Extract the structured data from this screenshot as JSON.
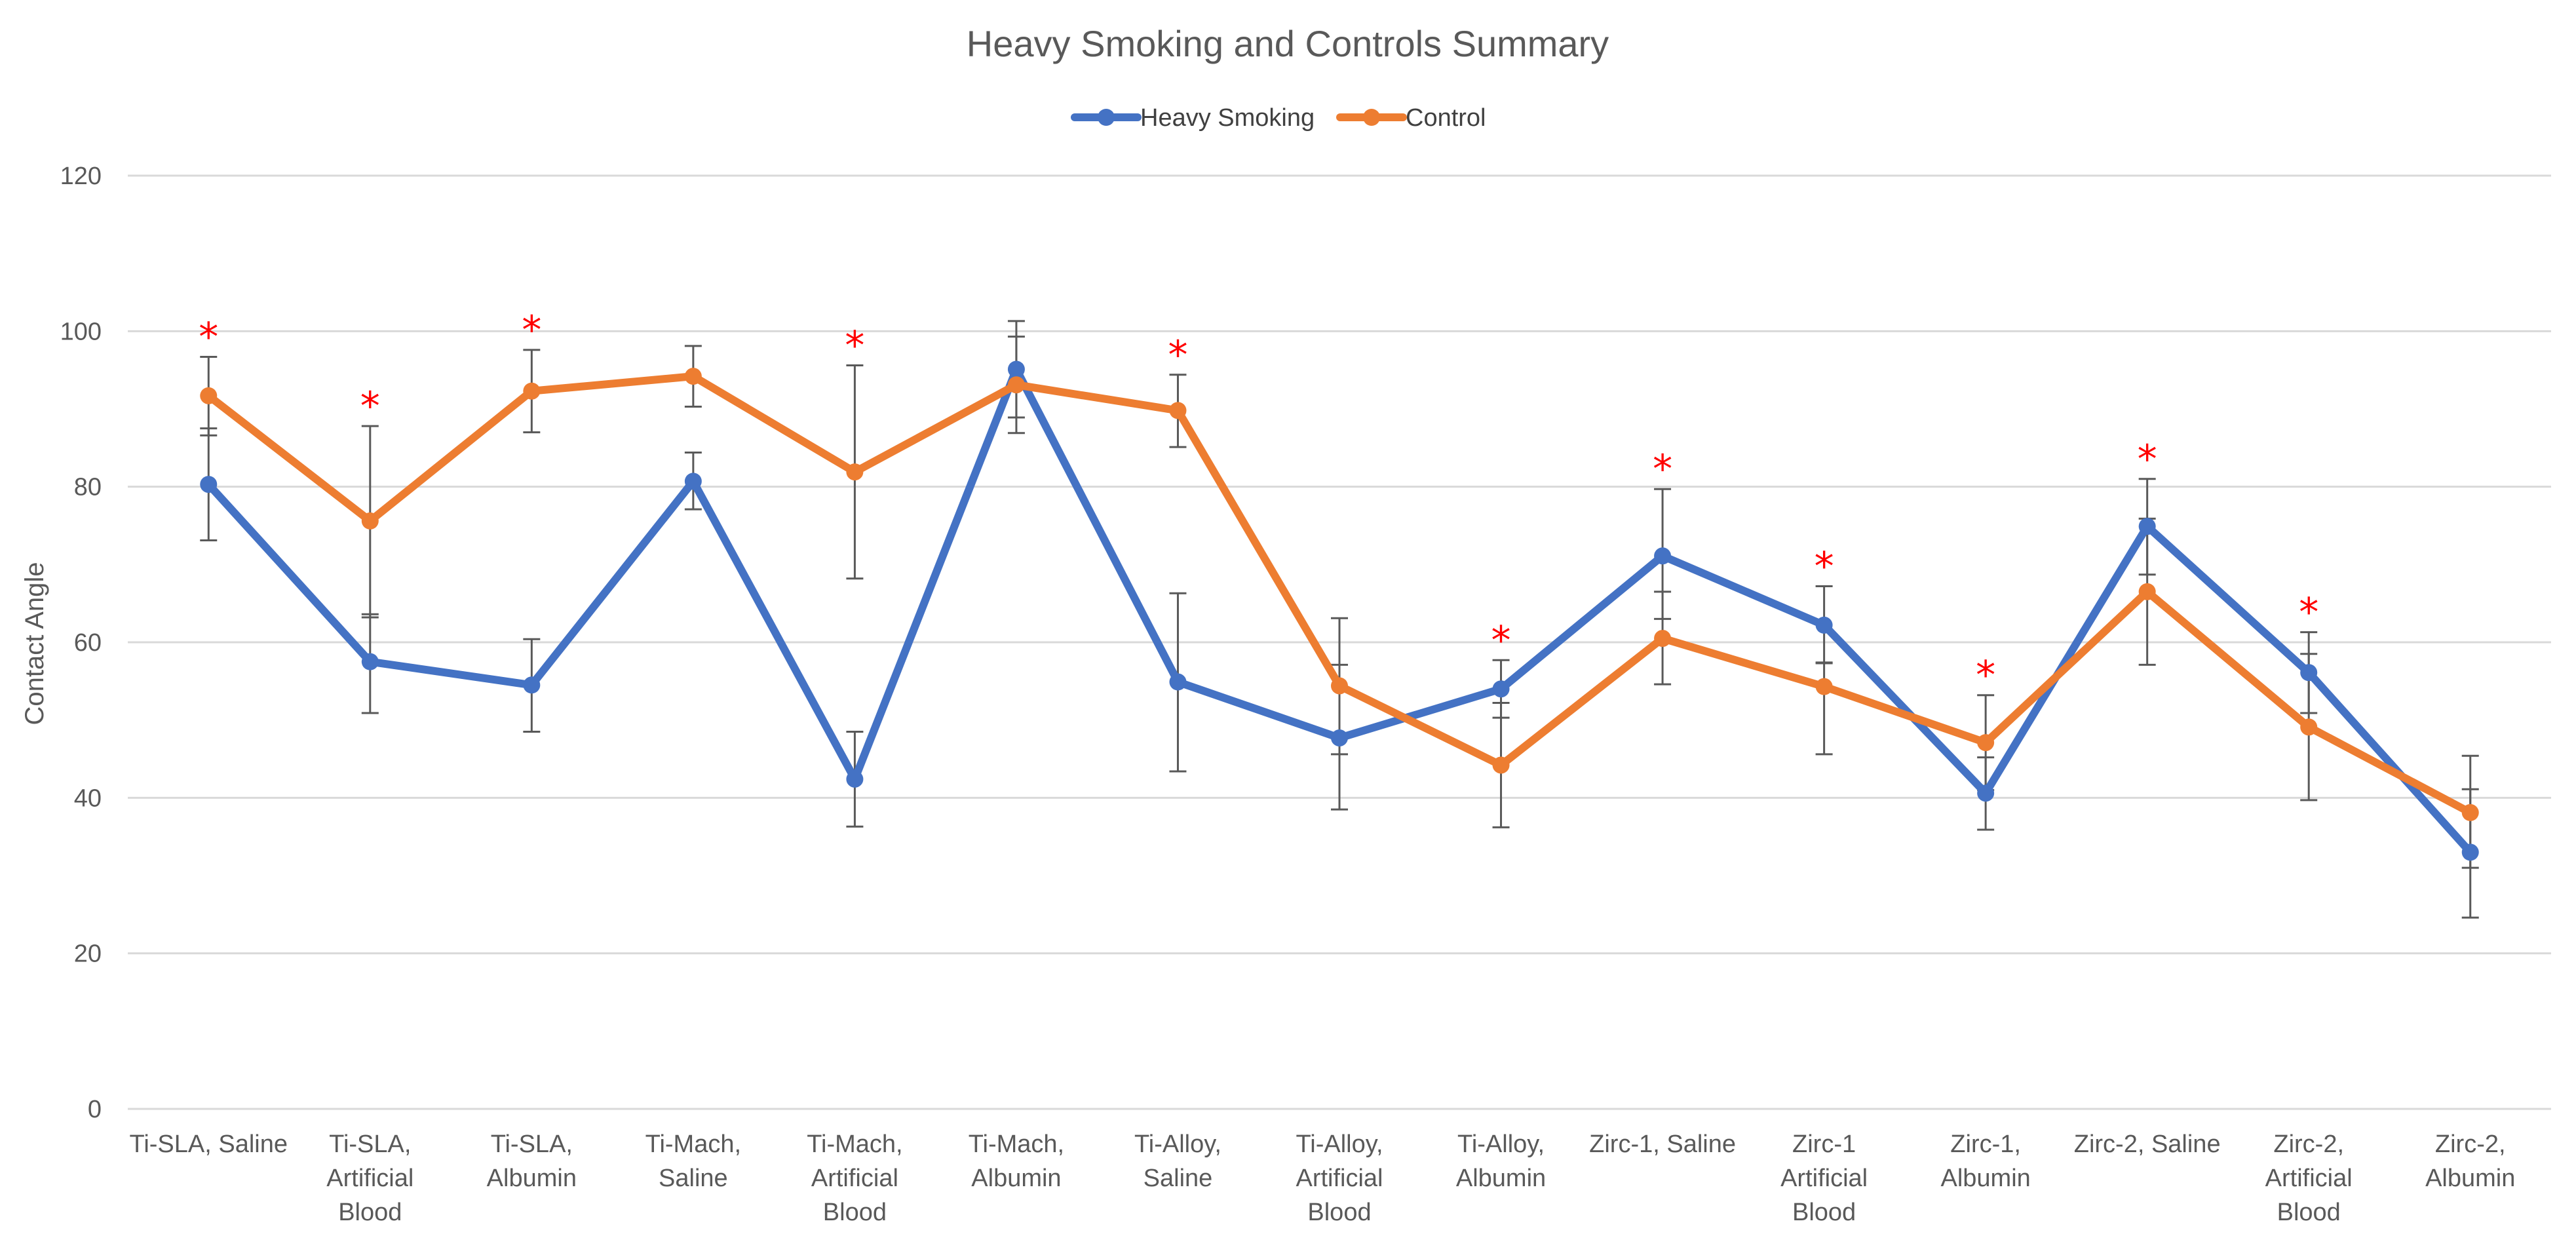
{
  "chart_data": {
    "type": "line",
    "title": "Heavy Smoking and Controls Summary",
    "xlabel": "",
    "ylabel": "Contact Angle",
    "ylim": [
      0,
      120
    ],
    "yticks": [
      "0",
      "20",
      "40",
      "60",
      "80",
      "100",
      "120"
    ],
    "grid": true,
    "legend_position": "top",
    "categories": [
      [
        "Ti-SLA, Saline"
      ],
      [
        "Ti-SLA,",
        "Artificial",
        "Blood"
      ],
      [
        "Ti-SLA,",
        "Albumin"
      ],
      [
        "Ti-Mach,",
        "Saline"
      ],
      [
        "Ti-Mach,",
        "Artificial",
        "Blood"
      ],
      [
        "Ti-Mach,",
        "Albumin"
      ],
      [
        "Ti-Alloy,",
        "Saline"
      ],
      [
        "Ti-Alloy,",
        "Artificial",
        "Blood"
      ],
      [
        "Ti-Alloy,",
        "Albumin"
      ],
      [
        "Zirc-1, Saline"
      ],
      [
        "Zirc-1",
        "Artificial",
        "Blood"
      ],
      [
        "Zirc-1,",
        "Albumin"
      ],
      [
        "Zirc-2, Saline"
      ],
      [
        "Zirc-2,",
        "Artificial",
        "Blood"
      ],
      [
        "Zirc-2,",
        "Albumin"
      ]
    ],
    "series": [
      {
        "name": "Heavy Smoking",
        "color": "#4472c4",
        "values": [
          80.3,
          57.5,
          54.5,
          80.7,
          42.4,
          95.1,
          54.9,
          47.7,
          54.0,
          71.1,
          62.2,
          40.6,
          74.9,
          56.1,
          33.0
        ],
        "error_low": [
          73.1,
          50.9,
          48.5,
          77.1,
          36.3,
          88.9,
          43.4,
          38.5,
          50.3,
          63.0,
          57.3,
          35.9,
          68.7,
          50.9,
          24.6
        ],
        "error_high": [
          87.5,
          63.6,
          60.4,
          84.4,
          48.5,
          101.3,
          66.3,
          57.1,
          57.7,
          79.7,
          67.2,
          45.2,
          81.0,
          61.3,
          41.1
        ]
      },
      {
        "name": "Control",
        "color": "#ed7d31",
        "values": [
          91.7,
          75.6,
          92.3,
          94.2,
          81.9,
          93.1,
          89.8,
          54.4,
          44.2,
          60.5,
          54.3,
          47.1,
          66.5,
          49.1,
          38.1
        ],
        "error_low": [
          86.6,
          63.2,
          87.0,
          90.3,
          68.2,
          86.9,
          85.1,
          45.6,
          36.2,
          54.6,
          45.6,
          41.0,
          57.1,
          39.7,
          31.0
        ],
        "error_high": [
          96.7,
          87.8,
          97.6,
          98.1,
          95.6,
          99.3,
          94.4,
          63.1,
          52.2,
          66.5,
          57.4,
          53.2,
          75.9,
          58.5,
          45.4
        ]
      }
    ],
    "significance_marker": "*",
    "significance_color": "#ff0000",
    "significant_categories": [
      0,
      1,
      2,
      4,
      6,
      8,
      9,
      10,
      11,
      12,
      13
    ]
  }
}
